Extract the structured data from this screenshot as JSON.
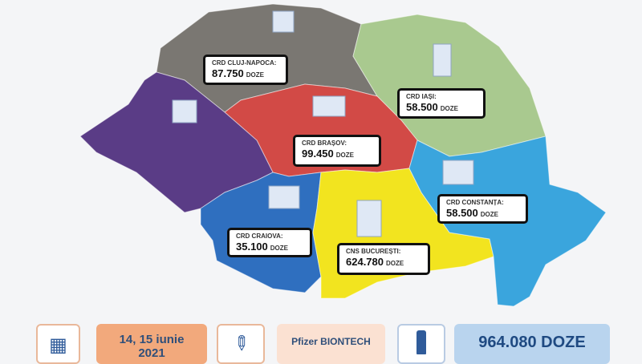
{
  "colors": {
    "cluj": "#7a7772",
    "iasi": "#a9c98f",
    "brasov": "#d24a46",
    "timisoara": "#5a3c86",
    "craiova": "#2f6fbf",
    "bucuresti": "#f2e41f",
    "constanta": "#3aa5dd",
    "date_box": "#f2a97c",
    "vaccine_box": "#fbe1d2",
    "doses_box": "#b9d4ee"
  },
  "regions": [
    {
      "name": "CRD CLUJ-NAPOCA:",
      "value": "87.750",
      "unit": "DOZE"
    },
    {
      "name": "CRD IAȘI:",
      "value": "58.500",
      "unit": "DOZE"
    },
    {
      "name": "CRD BRAȘOV:",
      "value": "99.450",
      "unit": "DOZE"
    },
    {
      "name": "CRD CONSTANȚA:",
      "value": "58.500",
      "unit": "DOZE"
    },
    {
      "name": "CRD CRAIOVA:",
      "value": "35.100",
      "unit": "DOZE"
    },
    {
      "name": "CNS BUCUREȘTI:",
      "value": "624.780",
      "unit": "DOZE"
    }
  ],
  "footer": {
    "date": "14, 15 iunie",
    "year": "2021",
    "vaccine": "Pfizer BIONTECH",
    "total": "964.080 DOZE",
    "icons": [
      "calendar-icon",
      "syringe-icon",
      "vial-icon"
    ]
  }
}
